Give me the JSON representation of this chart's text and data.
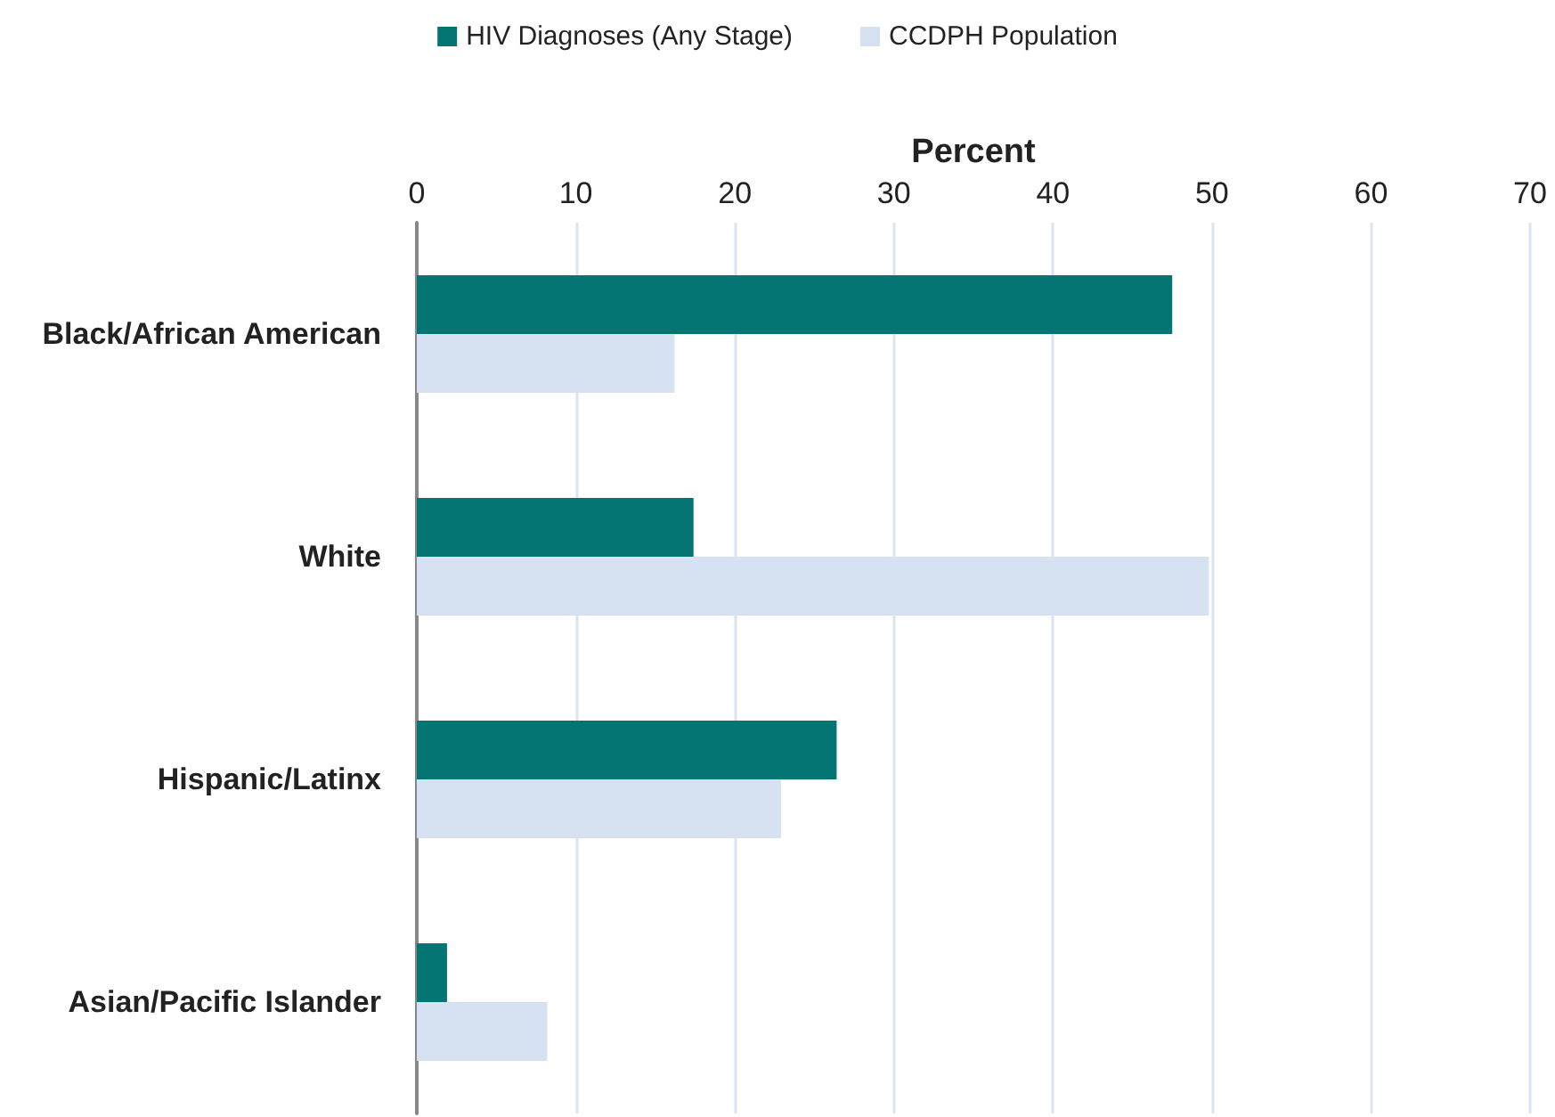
{
  "chart_data": {
    "type": "bar",
    "orientation": "horizontal",
    "xlabel": "Percent",
    "categories": [
      "Black/African American",
      "White",
      "Hispanic/Latinx",
      "Asian/Pacific Islander"
    ],
    "series": [
      {
        "name": "HIV Diagnoses (Any Stage)",
        "color": "#057573",
        "values": [
          47.5,
          17.4,
          26.4,
          1.9
        ]
      },
      {
        "name": "CCDPH Population",
        "color": "#d6e2f1",
        "values": [
          16.2,
          49.8,
          22.9,
          8.2
        ]
      }
    ],
    "xlim": [
      0,
      70
    ],
    "xticks": [
      0,
      10,
      20,
      30,
      40,
      50,
      60,
      70
    ],
    "grid": "x",
    "legend": "top"
  }
}
